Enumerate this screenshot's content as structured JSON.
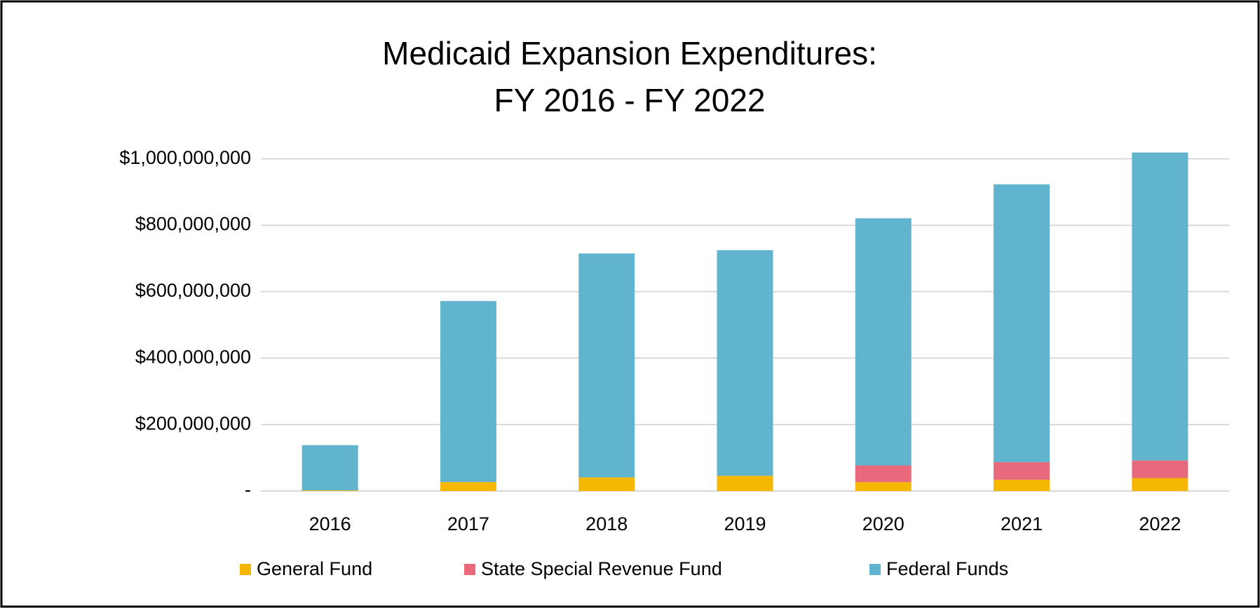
{
  "chart_data": {
    "type": "stacked_bar",
    "title": [
      "Medicaid Expansion Expenditures:",
      "FY 2016 - FY 2022"
    ],
    "categories": [
      "2016",
      "2017",
      "2018",
      "2019",
      "2020",
      "2021",
      "2022"
    ],
    "series": [
      {
        "name": "General Fund",
        "color": "#f5b700",
        "values": [
          2000000,
          27000000,
          41000000,
          46000000,
          27000000,
          34000000,
          39000000
        ]
      },
      {
        "name": "State Special Revenue Fund",
        "color": "#e8687c",
        "values": [
          0,
          0,
          0,
          0,
          50000000,
          53000000,
          53000000
        ]
      },
      {
        "name": "Federal Funds",
        "color": "#60b4ce",
        "values": [
          136000000,
          545000000,
          674000000,
          679000000,
          744000000,
          836000000,
          927000000
        ]
      }
    ],
    "ylim": [
      0,
      1050000000
    ],
    "yticks": [
      {
        "value": 0,
        "label": "-"
      },
      {
        "value": 200000000,
        "label": "$200,000,000"
      },
      {
        "value": 400000000,
        "label": "$400,000,000"
      },
      {
        "value": 600000000,
        "label": "$600,000,000"
      },
      {
        "value": 800000000,
        "label": "$800,000,000"
      },
      {
        "value": 1000000000,
        "label": "$1,000,000,000"
      }
    ],
    "grid": true,
    "legend": "bottom"
  }
}
